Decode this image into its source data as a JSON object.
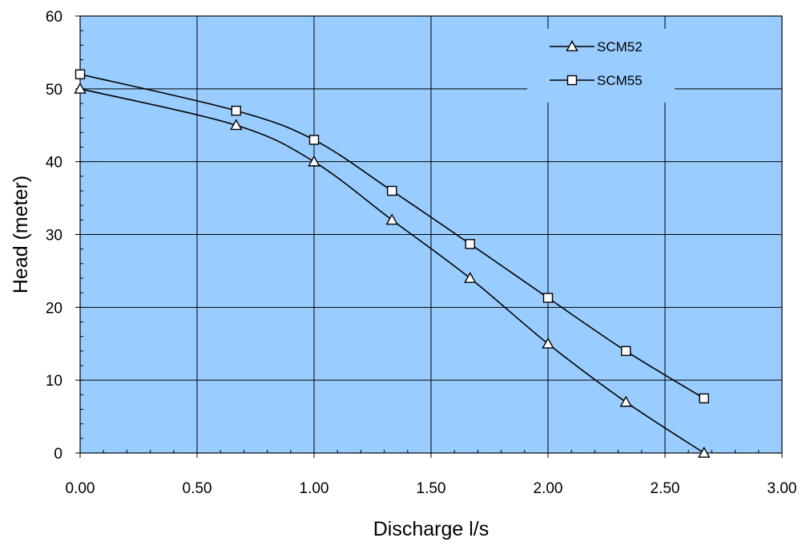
{
  "chart_data": {
    "type": "line",
    "xlabel": "Discharge l/s",
    "ylabel": "Head (meter)",
    "xlim": [
      0,
      3
    ],
    "ylim": [
      0,
      60
    ],
    "x_ticks": [
      "0.00",
      "0.50",
      "1.00",
      "1.50",
      "2.00",
      "2.50",
      "3.00"
    ],
    "y_ticks": [
      "0",
      "10",
      "20",
      "30",
      "40",
      "50",
      "60"
    ],
    "grid": true,
    "legend_position": "top-right",
    "plot_background": "#99ccff",
    "series": [
      {
        "name": "SCM52",
        "marker": "triangle",
        "x": [
          0.0,
          0.667,
          1.0,
          1.333,
          1.667,
          2.0,
          2.333,
          2.667
        ],
        "y": [
          50,
          45,
          40,
          32,
          24,
          15,
          7,
          0
        ]
      },
      {
        "name": "SCM55",
        "marker": "square",
        "x": [
          0.0,
          0.667,
          1.0,
          1.333,
          1.667,
          2.0,
          2.333,
          2.667
        ],
        "y": [
          52,
          47,
          43,
          36,
          28.7,
          21.3,
          14,
          7.5
        ]
      }
    ]
  }
}
